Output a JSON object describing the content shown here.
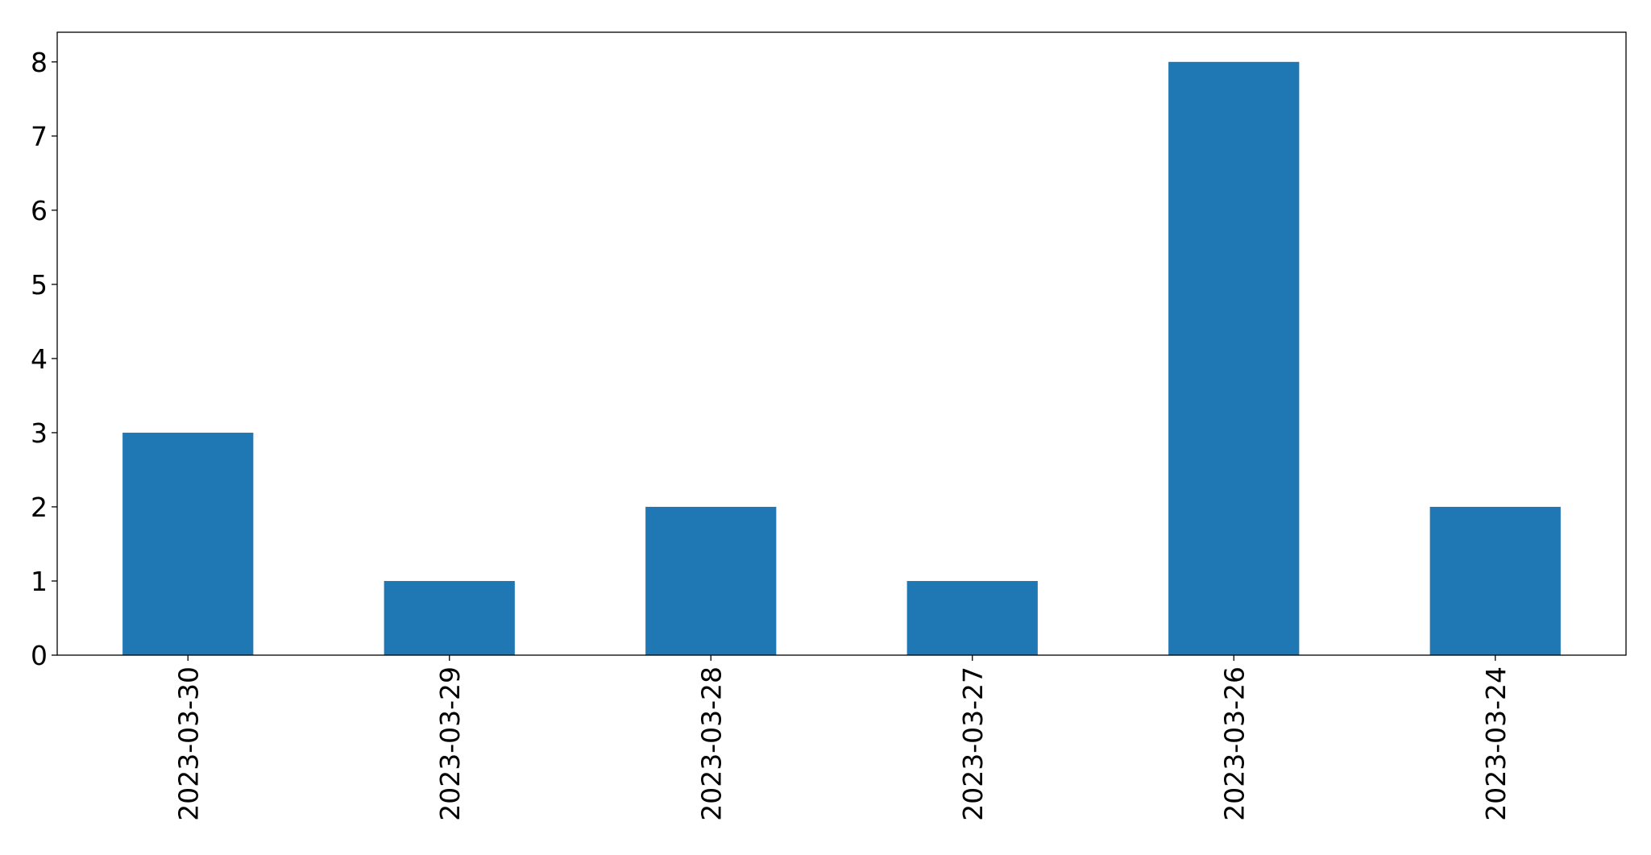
{
  "chart_data": {
    "type": "bar",
    "title": "",
    "xlabel": "",
    "ylabel": "",
    "categories": [
      "2023-03-30",
      "2023-03-29",
      "2023-03-28",
      "2023-03-27",
      "2023-03-26",
      "2023-03-24"
    ],
    "values": [
      3,
      1,
      2,
      1,
      8,
      2
    ],
    "ylim": [
      0,
      8.4
    ],
    "yticks": [
      0,
      1,
      2,
      3,
      4,
      5,
      6,
      7,
      8
    ],
    "ytick_labels": [
      "0",
      "1",
      "2",
      "3",
      "4",
      "5",
      "6",
      "7",
      "8"
    ],
    "xtick_rotation": 90,
    "grid": false,
    "legend": "none",
    "bar_color": "#1f77b4"
  }
}
